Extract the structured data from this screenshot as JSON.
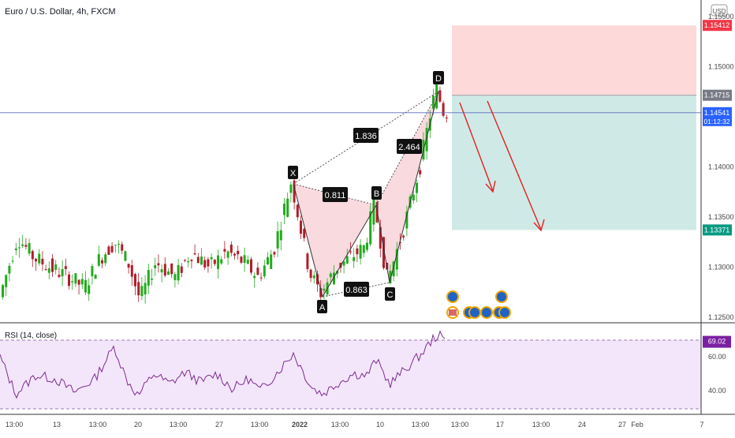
{
  "header": {
    "title": "Euro / U.S. Dollar, 4h, FXCM",
    "currency": "USD"
  },
  "price_axis": {
    "ticks": [
      "1.15500",
      "1.15000",
      "1.14000",
      "1.13500",
      "1.13000",
      "1.12500"
    ],
    "tick_values": [
      1.155,
      1.15,
      1.14,
      1.135,
      1.13,
      1.125
    ],
    "badges": [
      {
        "label": "1.15412",
        "value": 1.15412,
        "color": "#f23645"
      },
      {
        "label": "1.14715",
        "value": 1.14715,
        "color": "#787b86"
      },
      {
        "label": "1.14541",
        "value": 1.14541,
        "color": "#2962ff",
        "sub": "01:12:32"
      },
      {
        "label": "1.13371",
        "value": 1.13371,
        "color": "#089981"
      }
    ]
  },
  "rsi": {
    "label": "RSI (14, close)",
    "ticks": [
      "60.00",
      "40.00"
    ],
    "tick_values": [
      60,
      40
    ],
    "current_label": "69.02",
    "current": 69.02,
    "upper_band": 70,
    "lower_band": 30
  },
  "time_axis": {
    "labels": [
      "13:00",
      "13",
      "13:00",
      "20",
      "13:00",
      "27",
      "13:00",
      "2022",
      "13:00",
      "10",
      "13:00",
      "13:00",
      "17",
      "13:00",
      "24",
      "27",
      "Feb",
      "7"
    ]
  },
  "colors": {
    "up": "#089981",
    "down": "#b21c2a",
    "up_bright": "#22ab1d",
    "pattern_fill": "#f8d6dc",
    "stop_zone": "#fdd9d9",
    "target_zone": "#cfeae6",
    "rsi_line": "#7e2b8f",
    "rsi_fill": "#f3e6fb",
    "arrow": "#e02121"
  },
  "chart_data": {
    "type": "candlestick",
    "symbol": "EURUSD",
    "interval": "4h",
    "source": "FXCM",
    "ylim": [
      1.124,
      1.157
    ],
    "harmonic_pattern": {
      "points": [
        {
          "label": "X",
          "price": 1.1386
        },
        {
          "label": "A",
          "price": 1.1274
        },
        {
          "label": "B",
          "price": 1.1364
        },
        {
          "label": "C",
          "price": 1.1286
        },
        {
          "label": "D",
          "price": 1.1478
        }
      ],
      "ratios": [
        {
          "label": "0.811"
        },
        {
          "label": "0.863"
        },
        {
          "label": "1.836"
        },
        {
          "label": "2.464"
        }
      ]
    },
    "position": {
      "direction": "short",
      "entry": 1.14715,
      "stop": 1.15412,
      "target": 1.13371,
      "current_price": 1.14541
    }
  }
}
